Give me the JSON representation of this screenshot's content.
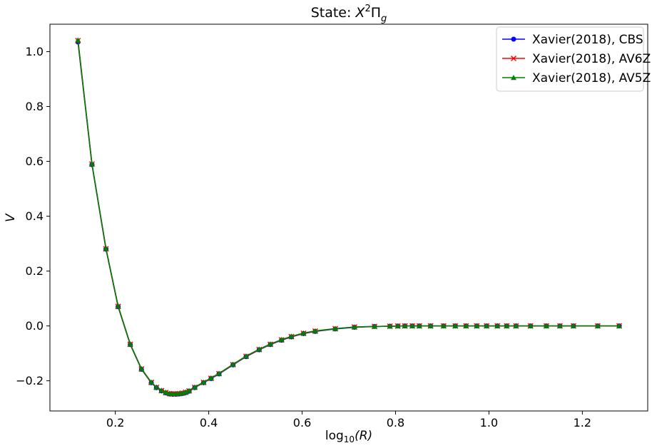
{
  "chart_data": {
    "type": "line",
    "title": {
      "prefix": "State: ",
      "symbol": "X",
      "sup": "2",
      "main": "Π",
      "sub": "g"
    },
    "xlabel": {
      "prefix": "log",
      "sub": "10",
      "suffix": "(R)"
    },
    "ylabel": "V",
    "xlim": [
      0.06,
      1.34
    ],
    "ylim": [
      -0.31,
      1.1
    ],
    "xticks": [
      0.2,
      0.4,
      0.6,
      0.8,
      1.0,
      1.2
    ],
    "xtick_labels": [
      "0.2",
      "0.4",
      "0.6",
      "0.8",
      "1.0",
      "1.2"
    ],
    "yticks": [
      -0.2,
      0.0,
      0.2,
      0.4,
      0.6,
      0.8,
      1.0
    ],
    "ytick_labels": [
      "−0.2",
      "0.0",
      "0.2",
      "0.4",
      "0.6",
      "0.8",
      "1.0"
    ],
    "grid": false,
    "legend_position": "top-right",
    "x": [
      0.12,
      0.15,
      0.18,
      0.206,
      0.232,
      0.256,
      0.277,
      0.288,
      0.299,
      0.308,
      0.316,
      0.323,
      0.33,
      0.337,
      0.344,
      0.351,
      0.358,
      0.37,
      0.389,
      0.405,
      0.422,
      0.452,
      0.48,
      0.508,
      0.532,
      0.556,
      0.577,
      0.603,
      0.628,
      0.671,
      0.712,
      0.755,
      0.788,
      0.805,
      0.82,
      0.836,
      0.851,
      0.875,
      0.903,
      0.928,
      0.951,
      0.974,
      0.995,
      1.018,
      1.038,
      1.058,
      1.089,
      1.123,
      1.152,
      1.181,
      1.233,
      1.279
    ],
    "series": [
      {
        "name": "Xavier(2018), CBS",
        "color": "#0000ff",
        "marker": "circle",
        "values": [
          1.035,
          0.588,
          0.28,
          0.07,
          -0.068,
          -0.158,
          -0.207,
          -0.225,
          -0.237,
          -0.244,
          -0.248,
          -0.249,
          -0.249,
          -0.248,
          -0.246,
          -0.243,
          -0.238,
          -0.225,
          -0.207,
          -0.192,
          -0.175,
          -0.142,
          -0.112,
          -0.087,
          -0.068,
          -0.052,
          -0.04,
          -0.028,
          -0.02,
          -0.011,
          -0.005,
          -0.002,
          -0.001,
          -0.0005,
          0.0,
          0.0,
          0.0,
          0.0,
          0.0,
          0.0,
          0.0,
          0.0,
          0.0,
          0.0,
          0.0,
          0.0,
          0.0,
          0.0,
          0.0,
          0.0,
          0.0,
          0.0
        ]
      },
      {
        "name": "Xavier(2018), AV6Z",
        "color": "#ff0000",
        "marker": "x",
        "values": [
          1.04,
          0.59,
          0.281,
          0.071,
          -0.067,
          -0.157,
          -0.206,
          -0.224,
          -0.236,
          -0.243,
          -0.247,
          -0.248,
          -0.248,
          -0.247,
          -0.245,
          -0.242,
          -0.237,
          -0.224,
          -0.206,
          -0.191,
          -0.174,
          -0.141,
          -0.111,
          -0.086,
          -0.067,
          -0.051,
          -0.039,
          -0.027,
          -0.019,
          -0.01,
          -0.004,
          -0.002,
          -0.001,
          -0.0005,
          0.0,
          0.0,
          0.0,
          0.0,
          0.0,
          0.0,
          0.0,
          0.0,
          0.0,
          0.0,
          0.0,
          0.0,
          0.0,
          0.0,
          0.0,
          0.0,
          0.0,
          0.0
        ]
      },
      {
        "name": "Xavier(2018), AV5Z",
        "color": "#008000",
        "marker": "triangle",
        "values": [
          1.042,
          0.591,
          0.283,
          0.073,
          -0.066,
          -0.156,
          -0.205,
          -0.223,
          -0.235,
          -0.242,
          -0.246,
          -0.247,
          -0.247,
          -0.246,
          -0.244,
          -0.241,
          -0.236,
          -0.223,
          -0.205,
          -0.19,
          -0.173,
          -0.14,
          -0.11,
          -0.085,
          -0.066,
          -0.05,
          -0.038,
          -0.026,
          -0.018,
          -0.01,
          -0.004,
          -0.002,
          -0.001,
          -0.0005,
          0.0,
          0.0,
          0.0,
          0.0,
          0.0,
          0.0,
          0.0,
          0.0,
          0.0,
          0.0,
          0.0,
          0.0,
          0.0,
          0.0,
          0.0,
          0.0,
          0.0,
          0.0
        ]
      }
    ]
  }
}
